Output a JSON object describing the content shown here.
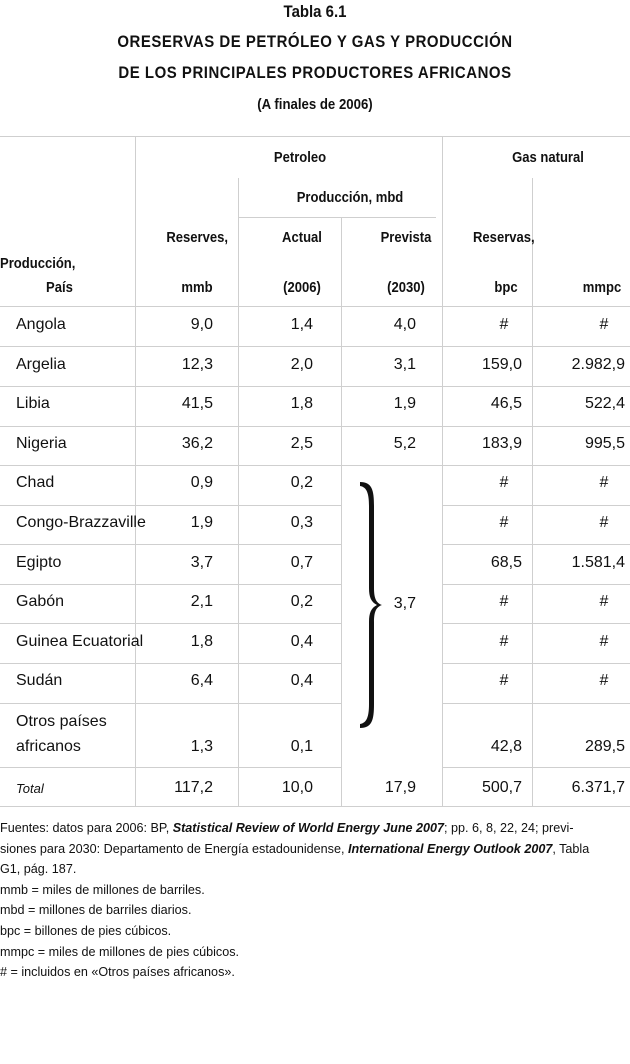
{
  "title": {
    "number": "Tabla 6.1",
    "line1": "ORESERVAS DE PETRÓLEO Y GAS Y PRODUCCIÓN",
    "line2": "DE LOS PRINCIPALES PRODUCTORES AFRICANOS",
    "subtitle": "(A finales de 2006)"
  },
  "headers": {
    "petroleo": "Petroleo",
    "gas": "Gas natural",
    "produccion_mbd": "Producción, mbd",
    "reserves": "Reserves,",
    "actual": "Actual",
    "prevista": "Prevista",
    "reservas": "Reservas,",
    "produccion": "Producción,",
    "pais": "País",
    "mmb": "mmb",
    "y2006": "(2006)",
    "y2030": "(2030)",
    "bpc": "bpc",
    "mmpc": "mmpc"
  },
  "rows": [
    {
      "pais": "Angola",
      "reserves": "9,0",
      "actual": "1,4",
      "prevista": "4,0",
      "bpc": "#",
      "mmpc": "#"
    },
    {
      "pais": "Argelia",
      "reserves": "12,3",
      "actual": "2,0",
      "prevista": "3,1",
      "bpc": "159,0",
      "mmpc": "2.982,9"
    },
    {
      "pais": "Libia",
      "reserves": "41,5",
      "actual": "1,8",
      "prevista": "1,9",
      "bpc": "46,5",
      "mmpc": "522,4"
    },
    {
      "pais": "Nigeria",
      "reserves": "36,2",
      "actual": "2,5",
      "prevista": "5,2",
      "bpc": "183,9",
      "mmpc": "995,5"
    },
    {
      "pais": "Chad",
      "reserves": "0,9",
      "actual": "0,2",
      "prevista": "",
      "bpc": "#",
      "mmpc": "#"
    },
    {
      "pais": "Congo-Brazzaville",
      "reserves": "1,9",
      "actual": "0,3",
      "prevista": "",
      "bpc": "#",
      "mmpc": "#"
    },
    {
      "pais": "Egipto",
      "reserves": "3,7",
      "actual": "0,7",
      "prevista": "",
      "bpc": "68,5",
      "mmpc": "1.581,4"
    },
    {
      "pais": "Gabón",
      "reserves": "2,1",
      "actual": "0,2",
      "prevista": "",
      "bpc": "#",
      "mmpc": "#"
    },
    {
      "pais": "Guinea Ecuatorial",
      "reserves": "1,8",
      "actual": "0,4",
      "prevista": "",
      "bpc": "#",
      "mmpc": "#"
    },
    {
      "pais": "Sudán",
      "reserves": "6,4",
      "actual": "0,4",
      "prevista": "",
      "bpc": "#",
      "mmpc": "#"
    }
  ],
  "otros": {
    "line1": "Otros países",
    "line2": "africanos",
    "reserves": "1,3",
    "actual": "0,1",
    "bpc": "42,8",
    "mmpc": "289,5"
  },
  "grouped_prevista": "3,7",
  "total": {
    "label": "Total",
    "reserves": "117,2",
    "actual": "10,0",
    "prevista": "17,9",
    "bpc": "500,7",
    "mmpc": "6.371,7"
  },
  "footnotes": {
    "src_a": "Fuentes: datos para 2006: BP, ",
    "src_b": "Statistical Review of World Energy June 2007",
    "src_c": "; pp. 6, 8, 22, 24; previ-",
    "src_d": "siones para 2030: Departamento de Energía estadounidense, ",
    "src_e": "International Energy Outlook 2007",
    "src_f": ", Tabla",
    "src_g": "G1, pág. 187.",
    "n1": "mmb = miles de millones de barriles.",
    "n2": "mbd = millones de barriles diarios.",
    "n3": "bpc = billones de pies cúbicos.",
    "n4": "mmpc = miles de millones de pies cúbicos.",
    "n5": "# = incluidos en «Otros países africanos»."
  }
}
